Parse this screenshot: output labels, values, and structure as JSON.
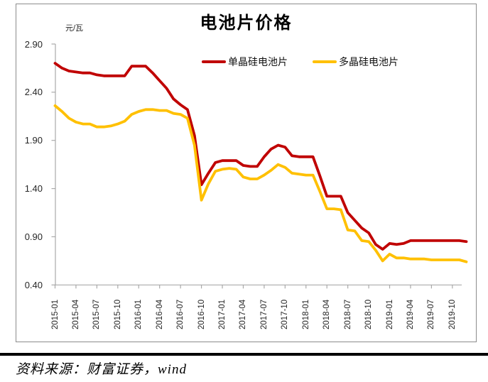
{
  "title": "电池片价格",
  "unit_label": "元/瓦",
  "source": {
    "text": "资料来源：财富证券，wind"
  },
  "chart_data": {
    "type": "line",
    "title": "电池片价格",
    "ylabel": "元/瓦",
    "xlabel": "",
    "grid": false,
    "legend_position": "top-inside",
    "ylim": [
      0.4,
      2.9
    ],
    "y_tick_labels": [
      "2.90",
      "2.40",
      "1.90",
      "1.40",
      "0.90",
      "0.40"
    ],
    "axis_color": "#a9a9a9",
    "x_axis_shown_ticks": [
      "2015-01",
      "2015-04",
      "2015-07",
      "2015-10",
      "2016-01",
      "2016-04",
      "2016-07",
      "2016-10",
      "2017-01",
      "2017-04",
      "2017-07",
      "2017-10",
      "2018-01",
      "2018-04",
      "2018-07",
      "2018-10",
      "2019-01",
      "2019-04",
      "2019-07",
      "2019-10"
    ],
    "x_labels": [
      "2015-01",
      "2015-02",
      "2015-03",
      "2015-04",
      "2015-05",
      "2015-06",
      "2015-07",
      "2015-08",
      "2015-09",
      "2015-10",
      "2015-11",
      "2015-12",
      "2016-01",
      "2016-02",
      "2016-03",
      "2016-04",
      "2016-05",
      "2016-06",
      "2016-07",
      "2016-08",
      "2016-09",
      "2016-10",
      "2016-11",
      "2016-12",
      "2017-01",
      "2017-02",
      "2017-03",
      "2017-04",
      "2017-05",
      "2017-06",
      "2017-07",
      "2017-08",
      "2017-09",
      "2017-10",
      "2017-11",
      "2017-12",
      "2018-01",
      "2018-02",
      "2018-03",
      "2018-04",
      "2018-05",
      "2018-06",
      "2018-07",
      "2018-08",
      "2018-09",
      "2018-10",
      "2018-11",
      "2018-12",
      "2019-01",
      "2019-02",
      "2019-03",
      "2019-04",
      "2019-05",
      "2019-06",
      "2019-07",
      "2019-08",
      "2019-09",
      "2019-10",
      "2019-11",
      "2019-12"
    ],
    "series": [
      {
        "name": "单晶硅电池片",
        "color": "#C00000",
        "values": [
          2.7,
          2.65,
          2.62,
          2.61,
          2.6,
          2.6,
          2.58,
          2.57,
          2.57,
          2.57,
          2.57,
          2.67,
          2.67,
          2.67,
          2.6,
          2.52,
          2.44,
          2.33,
          2.27,
          2.22,
          1.95,
          1.44,
          1.56,
          1.67,
          1.69,
          1.69,
          1.69,
          1.64,
          1.63,
          1.63,
          1.73,
          1.81,
          1.85,
          1.83,
          1.74,
          1.73,
          1.73,
          1.73,
          1.53,
          1.32,
          1.32,
          1.32,
          1.15,
          1.07,
          0.99,
          0.94,
          0.82,
          0.77,
          0.83,
          0.82,
          0.83,
          0.86,
          0.86,
          0.86,
          0.86,
          0.86,
          0.86,
          0.86,
          0.86,
          0.85
        ]
      },
      {
        "name": "多晶硅电池片",
        "color": "#FFC000",
        "values": [
          2.26,
          2.2,
          2.13,
          2.09,
          2.07,
          2.07,
          2.04,
          2.04,
          2.05,
          2.07,
          2.1,
          2.17,
          2.2,
          2.22,
          2.22,
          2.21,
          2.21,
          2.18,
          2.17,
          2.13,
          1.85,
          1.28,
          1.45,
          1.58,
          1.6,
          1.61,
          1.6,
          1.52,
          1.5,
          1.5,
          1.54,
          1.59,
          1.65,
          1.62,
          1.56,
          1.55,
          1.54,
          1.54,
          1.37,
          1.19,
          1.19,
          1.18,
          0.97,
          0.96,
          0.86,
          0.85,
          0.76,
          0.65,
          0.72,
          0.68,
          0.68,
          0.67,
          0.67,
          0.67,
          0.66,
          0.66,
          0.66,
          0.66,
          0.66,
          0.64
        ]
      }
    ]
  }
}
